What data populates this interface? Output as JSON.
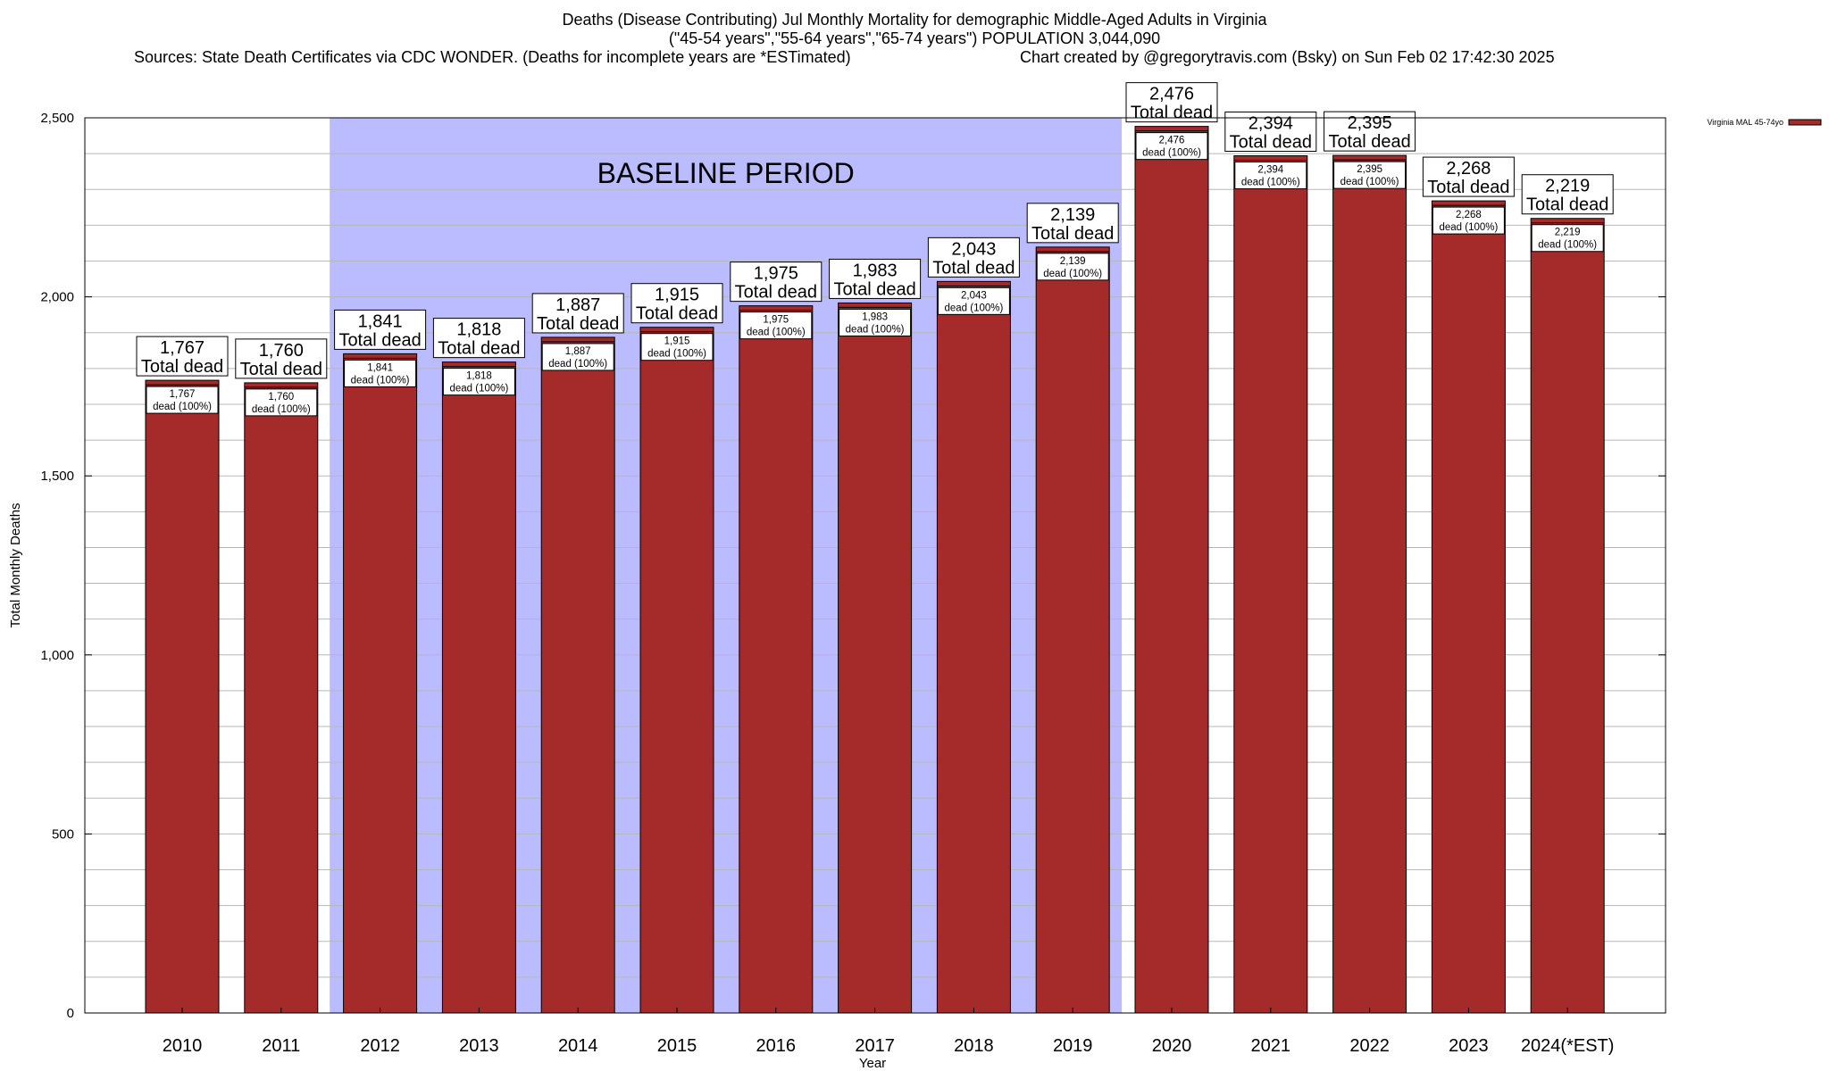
{
  "chart_data": {
    "type": "bar",
    "title_line1": "Deaths (Disease Contributing) Jul Monthly Mortality for demographic Middle-Aged Adults in Virginia",
    "title_line2": "(\"45-54 years\",\"55-64 years\",\"65-74 years\") POPULATION 3,044,090",
    "title_line3_left": "Sources: State Death Certificates via CDC WONDER. (Deaths for incomplete years are *ESTimated)",
    "title_line3_right": "Chart created by @gregorytravis.com (Bsky) on Sun Feb 02 17:42:30 2025",
    "xlabel": "Year",
    "ylabel": "Total Monthly Deaths",
    "ylim": [
      0,
      2500
    ],
    "yticks": [
      0,
      500,
      1000,
      1500,
      2000,
      2500
    ],
    "ytick_labels": [
      "0",
      "500",
      "1,000",
      "1,500",
      "2,000",
      "2,500"
    ],
    "categories": [
      "2010",
      "2011",
      "2012",
      "2013",
      "2014",
      "2015",
      "2016",
      "2017",
      "2018",
      "2019",
      "2020",
      "2021",
      "2022",
      "2023",
      "2024(*EST)"
    ],
    "values": [
      1767,
      1760,
      1841,
      1818,
      1887,
      1915,
      1975,
      1983,
      2043,
      2139,
      2476,
      2394,
      2395,
      2268,
      2219
    ],
    "top_labels": [
      "1,767",
      "1,760",
      "1,841",
      "1,818",
      "1,887",
      "1,915",
      "1,975",
      "1,983",
      "2,043",
      "2,139",
      "2,476",
      "2,394",
      "2,395",
      "2,268",
      "2,219"
    ],
    "total_label_suffix": "Total dead",
    "inner_label_suffix": "dead (100%)",
    "baseline": {
      "label": "BASELINE PERIOD",
      "start": "2012",
      "end": "2019",
      "color": "#bbbbff"
    },
    "bar_color": "#a52a2a",
    "legend": {
      "label": "Virginia MAL 45-74yo",
      "position": "top-right"
    },
    "grid": true
  }
}
